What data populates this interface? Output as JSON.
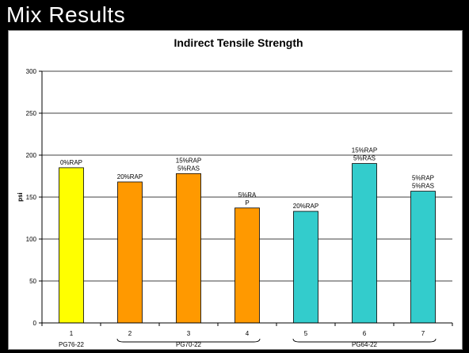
{
  "slide": {
    "title": "Mix Results"
  },
  "colors": {
    "background": "#000000",
    "plot": "#ffffff",
    "group1": "#ffff00",
    "group2": "#ff9900",
    "group3": "#33cccc"
  },
  "chart_data": {
    "type": "bar",
    "title": "Indirect Tensile Strength",
    "ylabel": "psi",
    "xlabel": "",
    "ylim": [
      0,
      300
    ],
    "yticks": [
      0,
      50,
      100,
      150,
      200,
      250,
      300
    ],
    "grid": true,
    "legend": "none",
    "categories": [
      "1",
      "2",
      "3",
      "4",
      "5",
      "6",
      "7"
    ],
    "values": [
      185,
      168,
      178,
      137,
      133,
      190,
      157
    ],
    "bar_labels": [
      [
        "0%RAP"
      ],
      [
        "20%RAP"
      ],
      [
        "15%RAP",
        "5%RAS"
      ],
      [
        "5%RA",
        "P"
      ],
      [
        "20%RAP"
      ],
      [
        "15%RAP",
        "5%RAS"
      ],
      [
        "5%RAP",
        "5%RAS"
      ]
    ],
    "bar_colors": [
      "#ffff00",
      "#ff9900",
      "#ff9900",
      "#ff9900",
      "#33cccc",
      "#33cccc",
      "#33cccc"
    ],
    "groups": [
      {
        "label": "PG76-22",
        "members": [
          0
        ]
      },
      {
        "label": "PG70-22",
        "members": [
          1,
          2,
          3
        ]
      },
      {
        "label": "PG64-22",
        "members": [
          4,
          5,
          6
        ]
      }
    ]
  }
}
